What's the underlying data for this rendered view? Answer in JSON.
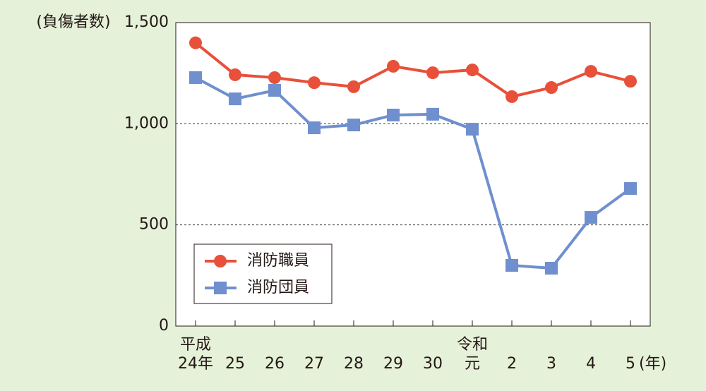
{
  "chart_data": {
    "type": "line",
    "y_label": "(負傷者数)",
    "x_unit": "(年)",
    "categories": [
      "平成\n24年",
      "25",
      "26",
      "27",
      "28",
      "29",
      "30",
      "令和\n元",
      "2",
      "3",
      "4",
      "5"
    ],
    "series": [
      {
        "name": "消防職員",
        "color": "#e8503a",
        "marker": "circle",
        "values": [
          1400,
          1242,
          1228,
          1203,
          1183,
          1284,
          1252,
          1266,
          1134,
          1179,
          1259,
          1210
        ]
      },
      {
        "name": "消防団員",
        "color": "#6f8fcf",
        "marker": "square",
        "values": [
          1228,
          1123,
          1165,
          980,
          994,
          1043,
          1047,
          973,
          300,
          286,
          537,
          680
        ]
      }
    ],
    "ylim": [
      0,
      1500
    ],
    "yticks": [
      0,
      500,
      {
        "value": 1000,
        "label": "1,000"
      },
      {
        "value": 1500,
        "label": "1,500"
      }
    ],
    "grid": true
  }
}
